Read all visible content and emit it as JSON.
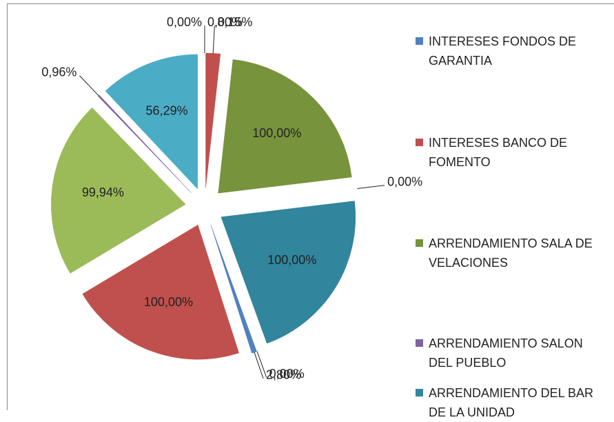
{
  "chart_data": {
    "type": "pie",
    "categories": [
      "INTERESES FONDOS DE GARANTIA",
      "INTERESES BANCO DE FOMENTO",
      "ARRENDAMIENTO SALA DE VELACIONES",
      "ARRENDAMIENTO SALON DEL PUEBLO",
      "ARRENDAMIENTO DEL BAR DE LA UNIDAD",
      null,
      null,
      null,
      null,
      null,
      null,
      null
    ],
    "values": [
      0,
      8.15,
      100,
      0,
      100,
      0,
      2.8,
      100,
      99.94,
      0.96,
      56.29,
      0
    ],
    "value_labels": [
      "0,00%",
      "8,15%",
      "100,00%",
      "0,00%",
      "100,00%",
      "0,00%",
      "2,80%",
      "100,00%",
      "99,94%",
      "0,96%",
      "56,29%",
      "0,00%"
    ],
    "colors": [
      "#4f81bd",
      "#c0504d",
      "#77933c",
      "#8064a2",
      "#31859c",
      "#f79646",
      "#4f81bd",
      "#c0504d",
      "#9bbb59",
      "#8064a2",
      "#4bacc6",
      "#f79646"
    ]
  }
}
